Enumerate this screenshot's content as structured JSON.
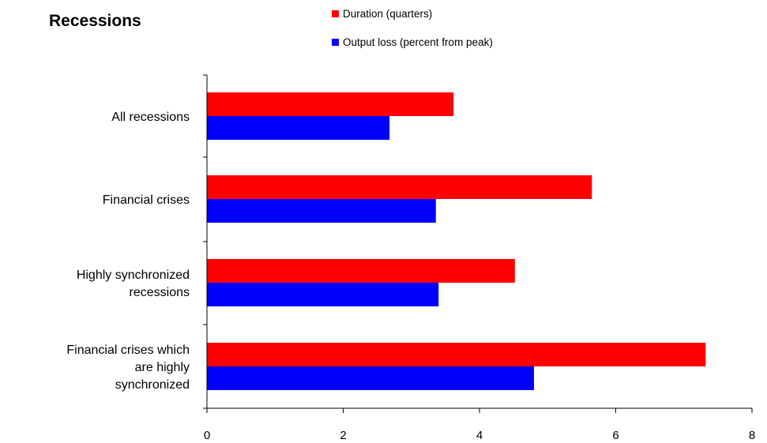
{
  "chart_data": {
    "type": "bar",
    "orientation": "horizontal",
    "title": "Recessions",
    "categories": [
      "All recessions",
      "Financial crises",
      "Highly synchronized recessions",
      "Financial crises which are highly synchronized"
    ],
    "category_label_lines": [
      [
        "All recessions"
      ],
      [
        "Financial crises"
      ],
      [
        "Highly synchronized",
        "recessions"
      ],
      [
        "Financial crises which",
        "are highly",
        "synchronized"
      ]
    ],
    "series": [
      {
        "name": "Duration (quarters)",
        "color": "#ff0000",
        "values": [
          3.62,
          5.65,
          4.52,
          7.32
        ]
      },
      {
        "name": "Output loss (percent from peak)",
        "color": "#0000ff",
        "values": [
          2.68,
          3.36,
          3.4,
          4.8
        ]
      }
    ],
    "xlim": [
      0,
      8
    ],
    "xticks": [
      0,
      2,
      4,
      6,
      8
    ],
    "xticklabels": [
      "0",
      "2",
      "4",
      "6",
      "8"
    ],
    "xlabel": "",
    "ylabel": "",
    "grid": false,
    "legend_position": "top"
  }
}
